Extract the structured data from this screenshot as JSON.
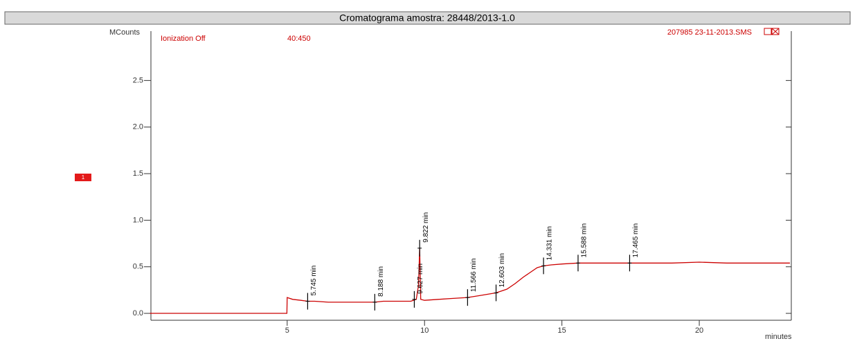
{
  "chart_data": {
    "type": "line",
    "title": "Cromatograma amostra: 28448/2013-1.0",
    "y_label": "MCounts",
    "x_label": "minutes",
    "ionization": "Ionization Off",
    "mass_range": "40:450",
    "file": "207985 23-11-2013.SMS",
    "trace_number": "1",
    "xlim": [
      0.04,
      23.35
    ],
    "xticks": [
      5,
      10,
      15,
      20
    ],
    "ylim": [
      -0.074,
      3.03
    ],
    "yticks": [
      {
        "value": 0,
        "label": "0.0"
      },
      0.5,
      {
        "value": 1,
        "label": "1.0"
      },
      1.5,
      {
        "value": 2,
        "label": "2.0"
      },
      2.5
    ],
    "series": [
      {
        "color": "#cc0000",
        "x": [
          0,
          4.99,
          5.0,
          5.2,
          5.5,
          5.745,
          6.0,
          6.5,
          7.0,
          7.5,
          8.0,
          8.188,
          8.5,
          9.0,
          9.5,
          9.7,
          9.78,
          9.822,
          9.86,
          10.0,
          10.5,
          11.0,
          11.566,
          12.0,
          12.603,
          13.0,
          13.3,
          13.6,
          13.9,
          14.1,
          14.331,
          14.6,
          15.0,
          15.588,
          16.0,
          17.0,
          17.465,
          18.0,
          19.0,
          20.0,
          21.0,
          22.0,
          23.3
        ],
        "values": [
          0,
          0,
          0.17,
          0.15,
          0.14,
          0.13,
          0.13,
          0.12,
          0.12,
          0.12,
          0.12,
          0.12,
          0.13,
          0.13,
          0.13,
          0.15,
          0.3,
          0.7,
          0.15,
          0.14,
          0.15,
          0.16,
          0.17,
          0.19,
          0.22,
          0.26,
          0.32,
          0.39,
          0.45,
          0.49,
          0.51,
          0.52,
          0.53,
          0.54,
          0.54,
          0.54,
          0.54,
          0.54,
          0.54,
          0.55,
          0.54,
          0.54,
          0.54
        ]
      }
    ],
    "peaks": [
      {
        "time": 5.745,
        "y": 0.13,
        "label": "5.745 min"
      },
      {
        "time": 8.188,
        "y": 0.12,
        "label": "8.188 min"
      },
      {
        "time": 9.627,
        "y": 0.15,
        "label": "9.627 min"
      },
      {
        "time": 9.822,
        "y": 0.7,
        "label": "9.822 min"
      },
      {
        "time": 11.566,
        "y": 0.17,
        "label": "11.566 min"
      },
      {
        "time": 12.603,
        "y": 0.22,
        "label": "12.603 min"
      },
      {
        "time": 14.331,
        "y": 0.51,
        "label": "14.331 min"
      },
      {
        "time": 15.588,
        "y": 0.54,
        "label": "15.588 min"
      },
      {
        "time": 17.465,
        "y": 0.54,
        "label": "17.465 min"
      }
    ]
  }
}
